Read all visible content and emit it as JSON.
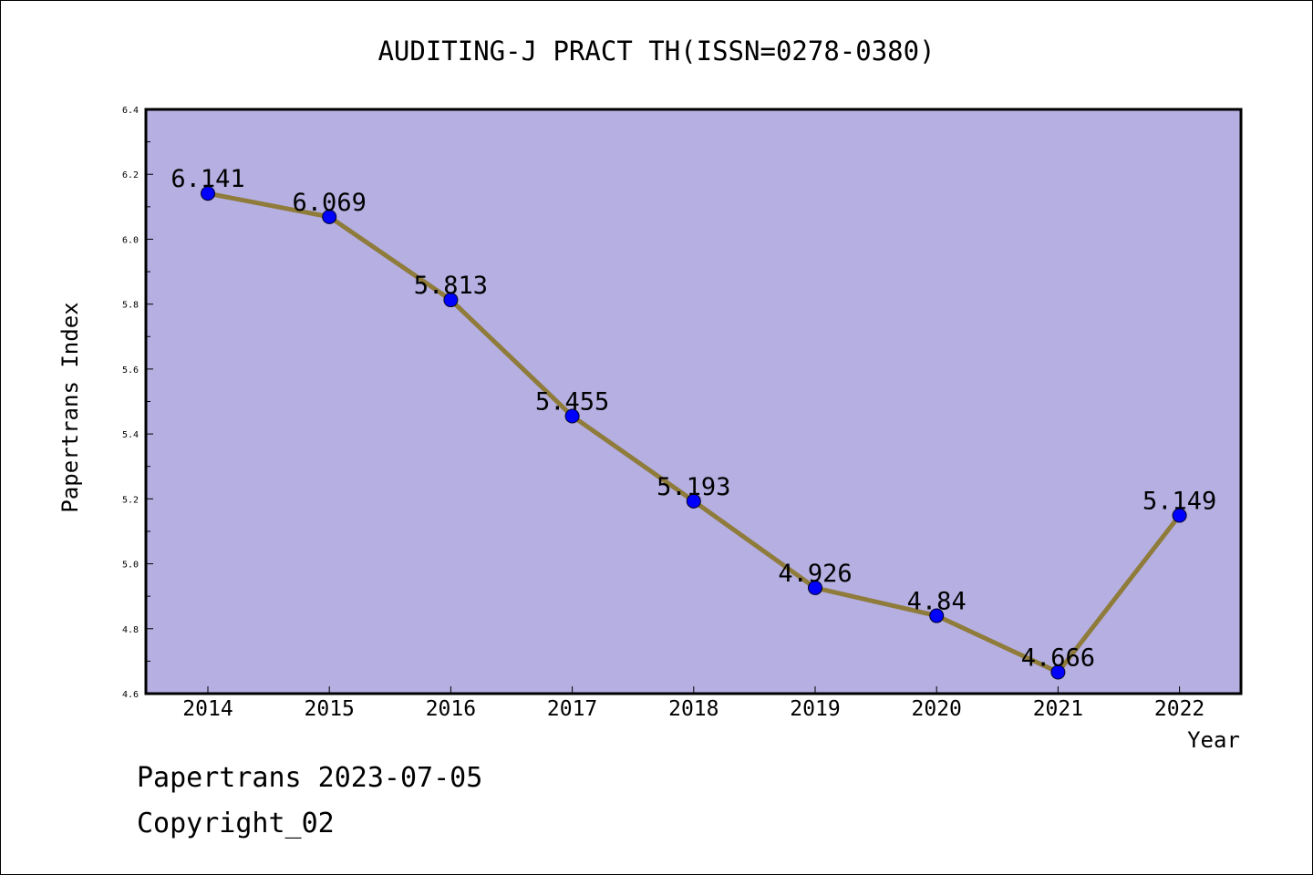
{
  "chart_data": {
    "type": "line",
    "title": "AUDITING-J PRACT TH(ISSN=0278-0380)",
    "xlabel": "Year",
    "ylabel": "Papertrans Index",
    "categories": [
      "2014",
      "2015",
      "2016",
      "2017",
      "2018",
      "2019",
      "2020",
      "2021",
      "2022"
    ],
    "values": [
      6.141,
      6.069,
      5.813,
      5.455,
      5.193,
      4.926,
      4.84,
      4.666,
      5.149
    ],
    "data_labels": [
      "6.141",
      "6.069",
      "5.813",
      "5.455",
      "5.193",
      "4.926",
      "4.84",
      "4.666",
      "5.149"
    ],
    "ylim": [
      4.6,
      6.4
    ],
    "yticks": [
      "4.6",
      "4.8",
      "5.0",
      "5.2",
      "5.4",
      "5.6",
      "5.8",
      "6.0",
      "6.2",
      "6.4"
    ],
    "grid": false,
    "colors": {
      "plot_background": "#b5afe2",
      "line": "#8f7b3a",
      "marker": "#0000ff"
    }
  },
  "footer": {
    "line1": "Papertrans 2023-07-05",
    "line2": "Copyright_02"
  }
}
